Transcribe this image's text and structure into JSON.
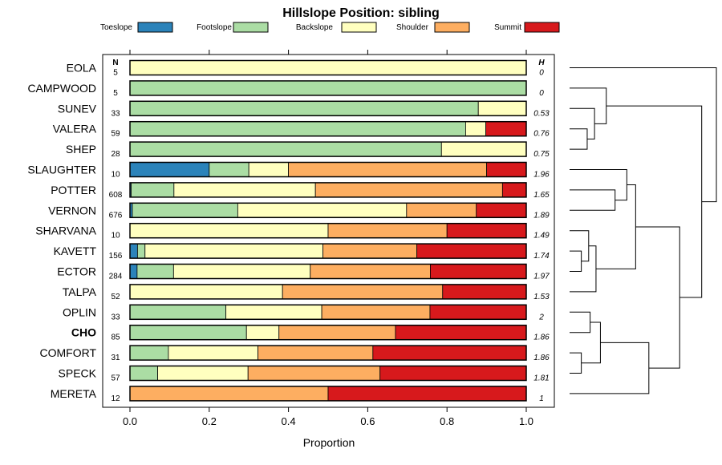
{
  "chart_data": {
    "type": "bar",
    "orientation": "horizontal",
    "stacked": true,
    "title": "Hillslope Position: sibling",
    "xlabel": "Proportion",
    "ylabel": "",
    "xlim": [
      0,
      1
    ],
    "xticks": [
      "0.0",
      "0.2",
      "0.4",
      "0.6",
      "0.8",
      "1.0"
    ],
    "xtick_values": [
      0,
      0.2,
      0.4,
      0.6,
      0.8,
      1.0
    ],
    "n_header": "N",
    "h_header": "H",
    "highlight": "CHO",
    "legend": [
      {
        "name": "Toeslope",
        "color": "#2b83ba"
      },
      {
        "name": "Footslope",
        "color": "#abdda4"
      },
      {
        "name": "Backslope",
        "color": "#ffffbf"
      },
      {
        "name": "Shoulder",
        "color": "#fdae61"
      },
      {
        "name": "Summit",
        "color": "#d7191c"
      }
    ],
    "categories": [
      "EOLA",
      "CAMPWOOD",
      "SUNEV",
      "VALERA",
      "SHEP",
      "SLAUGHTER",
      "POTTER",
      "VERNON",
      "SHARVANA",
      "KAVETT",
      "ECTOR",
      "TALPA",
      "OPLIN",
      "CHO",
      "COMFORT",
      "SPECK",
      "MERETA"
    ],
    "n": [
      "5",
      "5",
      "33",
      "59",
      "28",
      "10",
      "608",
      "676",
      "10",
      "156",
      "284",
      "52",
      "33",
      "85",
      "31",
      "57",
      "12"
    ],
    "h": [
      "0",
      "0",
      "0.53",
      "0.76",
      "0.75",
      "1.96",
      "1.65",
      "1.89",
      "1.49",
      "1.74",
      "1.97",
      "1.53",
      "2",
      "1.86",
      "1.86",
      "1.81",
      "1"
    ],
    "series": [
      {
        "name": "Toeslope",
        "values": [
          0,
          0,
          0,
          0,
          0,
          0.2,
          0.003,
          0.006,
          0,
          0.019,
          0.018,
          0,
          0,
          0,
          0,
          0,
          0
        ]
      },
      {
        "name": "Footslope",
        "values": [
          0,
          1.0,
          0.879,
          0.847,
          0.786,
          0.1,
          0.108,
          0.266,
          0,
          0.019,
          0.092,
          0,
          0.242,
          0.294,
          0.097,
          0.07,
          0
        ]
      },
      {
        "name": "Backslope",
        "values": [
          1.0,
          0,
          0.121,
          0.051,
          0.214,
          0.1,
          0.357,
          0.426,
          0.5,
          0.449,
          0.345,
          0.385,
          0.242,
          0.082,
          0.226,
          0.228,
          0
        ]
      },
      {
        "name": "Shoulder",
        "values": [
          0,
          0,
          0,
          0,
          0,
          0.5,
          0.472,
          0.176,
          0.3,
          0.237,
          0.303,
          0.404,
          0.273,
          0.294,
          0.29,
          0.333,
          0.5
        ]
      },
      {
        "name": "Summit",
        "values": [
          0,
          0,
          0,
          0.102,
          0,
          0.1,
          0.06,
          0.126,
          0.2,
          0.276,
          0.242,
          0.211,
          0.243,
          0.33,
          0.387,
          0.369,
          0.5
        ]
      }
    ],
    "dendrogram": {
      "type": "hierarchical-clustering",
      "merges": [
        {
          "id": "A",
          "children": [
            "VALERA",
            "SHEP"
          ],
          "height": 0.12
        },
        {
          "id": "B",
          "children": [
            "SUNEV",
            "A"
          ],
          "height": 0.17
        },
        {
          "id": "C",
          "children": [
            "CAMPWOOD",
            "B"
          ],
          "height": 0.25
        },
        {
          "id": "D",
          "children": [
            "KAVETT",
            "ECTOR"
          ],
          "height": 0.08
        },
        {
          "id": "E",
          "children": [
            "SHARVANA",
            "D"
          ],
          "height": 0.13
        },
        {
          "id": "F",
          "children": [
            "E",
            "TALPA"
          ],
          "height": 0.18
        },
        {
          "id": "G",
          "children": [
            "POTTER",
            "VERNON"
          ],
          "height": 0.31
        },
        {
          "id": "H",
          "children": [
            "SLAUGHTER",
            "G"
          ],
          "height": 0.39
        },
        {
          "id": "I",
          "children": [
            "H",
            "F"
          ],
          "height": 0.45
        },
        {
          "id": "J",
          "children": [
            "COMFORT",
            "SPECK"
          ],
          "height": 0.08
        },
        {
          "id": "K",
          "children": [
            "OPLIN",
            "CHO"
          ],
          "height": 0.14
        },
        {
          "id": "L",
          "children": [
            "K",
            "J"
          ],
          "height": 0.21
        },
        {
          "id": "M",
          "children": [
            "L",
            "MERETA"
          ],
          "height": 0.54
        },
        {
          "id": "N",
          "children": [
            "I",
            "M"
          ],
          "height": 0.75
        },
        {
          "id": "O",
          "children": [
            "C",
            "N"
          ],
          "height": 0.9
        },
        {
          "id": "P",
          "children": [
            "EOLA",
            "O"
          ],
          "height": 1.0
        }
      ]
    }
  }
}
